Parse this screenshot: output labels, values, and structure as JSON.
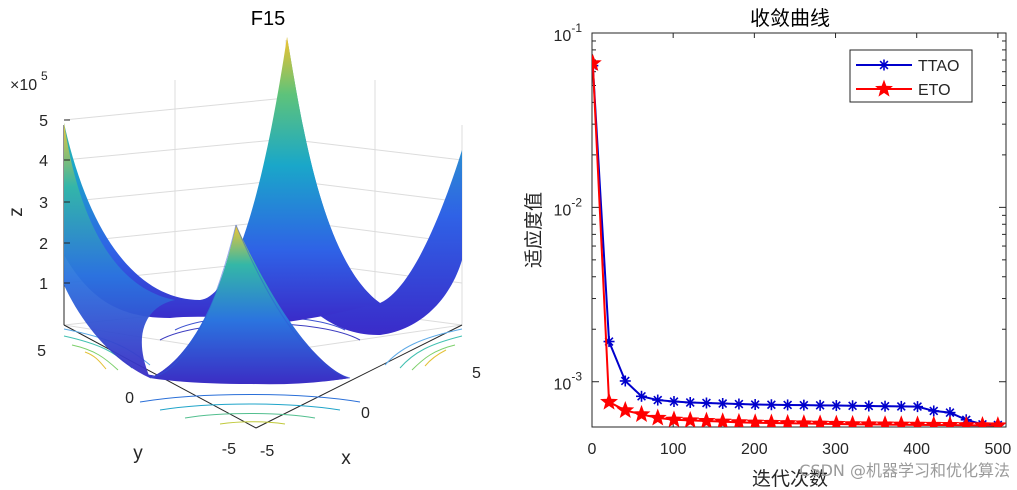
{
  "chart_data": [
    {
      "type": "surface",
      "title": "F15",
      "xlabel": "x",
      "ylabel": "y",
      "zlabel": "z",
      "z_multiplier_label": "×10",
      "z_multiplier_exp": "5",
      "x_ticks": [
        "-5",
        "0",
        "5"
      ],
      "y_ticks": [
        "-5",
        "0",
        "5"
      ],
      "z_ticks": [
        "1",
        "2",
        "3",
        "4",
        "5"
      ],
      "colormap": "parula",
      "contour_on_floor": true,
      "grid": true
    },
    {
      "type": "line",
      "title": "收敛曲线",
      "xlabel": "迭代次数",
      "ylabel": "适应度值",
      "yscale": "log",
      "xlim": [
        0,
        510
      ],
      "ylim": [
        0.00055,
        0.1
      ],
      "x_ticks": [
        "0",
        "100",
        "200",
        "300",
        "400",
        "500"
      ],
      "y_ticks": [
        {
          "base": "10",
          "exp": "-1"
        },
        {
          "base": "10",
          "exp": "-2"
        },
        {
          "base": "10",
          "exp": "-3"
        }
      ],
      "legend_position": "top-right",
      "x": [
        1,
        21,
        41,
        61,
        81,
        101,
        121,
        141,
        161,
        181,
        201,
        221,
        241,
        261,
        281,
        301,
        321,
        341,
        361,
        381,
        401,
        421,
        441,
        461,
        481,
        500
      ],
      "series": [
        {
          "name": "TTAO",
          "color": "#0000cc",
          "marker": "asterisk",
          "values": [
            0.065,
            0.0017,
            0.00101,
            0.000825,
            0.000785,
            0.00077,
            0.00076,
            0.000755,
            0.00075,
            0.000745,
            0.00074,
            0.000738,
            0.000736,
            0.000734,
            0.000732,
            0.00073,
            0.000728,
            0.000726,
            0.000724,
            0.000722,
            0.00072,
            0.00068,
            0.000665,
            0.000605,
            0.00057,
            0.000565
          ]
        },
        {
          "name": "ETO",
          "color": "#ff0000",
          "marker": "pentagram",
          "values": [
            0.067,
            0.000765,
            0.000685,
            0.00065,
            0.00062,
            0.000605,
            0.0006,
            0.000595,
            0.00059,
            0.000585,
            0.000582,
            0.00058,
            0.000578,
            0.000576,
            0.000574,
            0.000572,
            0.00057,
            0.000569,
            0.000568,
            0.000567,
            0.000566,
            0.000565,
            0.000564,
            0.000563,
            0.000562,
            0.000561
          ]
        }
      ]
    }
  ],
  "watermark": "CSDN @机器学习和优化算法"
}
